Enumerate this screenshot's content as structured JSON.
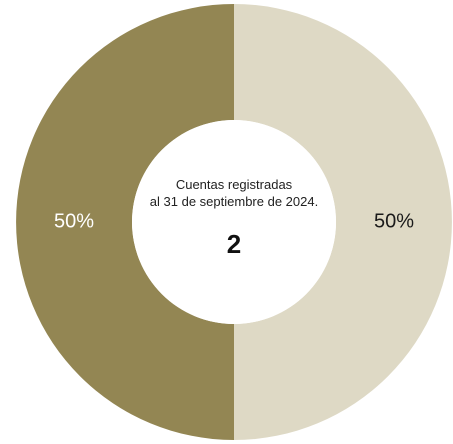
{
  "center": {
    "caption_line1": "Cuentas registradas",
    "caption_line2": "al 31 de septiembre de 2024.",
    "total": "2"
  },
  "chart_data": {
    "type": "pie",
    "donut": true,
    "categories": [
      "",
      ""
    ],
    "values": [
      50,
      50
    ],
    "labels": [
      "50%",
      "50%"
    ],
    "colors": [
      "#ded9c5",
      "#938653"
    ],
    "label_colors": [
      "#1a1a1a",
      "#ffffff"
    ],
    "start_angle_deg": 0,
    "direction": "clockwise",
    "legend": "none"
  }
}
